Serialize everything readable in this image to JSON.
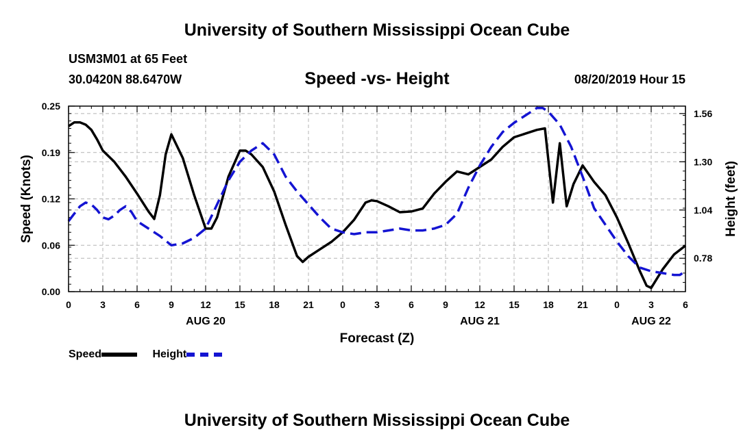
{
  "header": {
    "title": "University of Southern Mississippi Ocean Cube",
    "station": "USM3M01 at 65 Feet",
    "coords": "30.0420N 88.6470W",
    "chart_title": "Speed -vs- Height",
    "datetime": "08/20/2019 Hour 15"
  },
  "footer": {
    "title": "University of Southern Mississippi Ocean Cube"
  },
  "legend": {
    "speed_label": "Speed",
    "height_label": "Height"
  },
  "colors": {
    "speed": "#000000",
    "height": "#1414d2",
    "grid": "#b4b4b4"
  },
  "chart_data": {
    "type": "line",
    "title": "Speed -vs- Height",
    "xlabel": "Forecast (Z)",
    "ylabel": "Speed (Knots)",
    "y2label": "Height (feet)",
    "x_range": [
      0,
      54
    ],
    "ylim": [
      0.0,
      0.25
    ],
    "y2lim": [
      0.6,
      1.6
    ],
    "xticks": [
      {
        "x": 0,
        "label": "0"
      },
      {
        "x": 3,
        "label": "3"
      },
      {
        "x": 6,
        "label": "6"
      },
      {
        "x": 9,
        "label": "9"
      },
      {
        "x": 12,
        "label": "12"
      },
      {
        "x": 15,
        "label": "15"
      },
      {
        "x": 18,
        "label": "18"
      },
      {
        "x": 21,
        "label": "21"
      },
      {
        "x": 24,
        "label": "0"
      },
      {
        "x": 27,
        "label": "3"
      },
      {
        "x": 30,
        "label": "6"
      },
      {
        "x": 33,
        "label": "9"
      },
      {
        "x": 36,
        "label": "12"
      },
      {
        "x": 39,
        "label": "15"
      },
      {
        "x": 42,
        "label": "18"
      },
      {
        "x": 45,
        "label": "21"
      },
      {
        "x": 48,
        "label": "0"
      },
      {
        "x": 51,
        "label": "3"
      },
      {
        "x": 54,
        "label": "6"
      }
    ],
    "date_labels": [
      {
        "x": 12,
        "label": "AUG 20"
      },
      {
        "x": 36,
        "label": "AUG 21"
      },
      {
        "x": 51,
        "label": "AUG 22"
      }
    ],
    "yticks": [
      {
        "v": 0.0,
        "label": "0.00"
      },
      {
        "v": 0.0625,
        "label": "0.06"
      },
      {
        "v": 0.125,
        "label": "0.12"
      },
      {
        "v": 0.1875,
        "label": "0.19"
      },
      {
        "v": 0.25,
        "label": "0.25"
      }
    ],
    "y2ticks": [
      {
        "v": 0.78,
        "label": "0.78"
      },
      {
        "v": 1.04,
        "label": "1.04"
      },
      {
        "v": 1.3,
        "label": "1.30"
      },
      {
        "v": 1.56,
        "label": "1.56"
      }
    ],
    "series": [
      {
        "name": "Speed",
        "axis": "left",
        "style": "solid",
        "x": [
          0,
          0.5,
          1,
          1.5,
          2,
          2.5,
          3,
          4,
          5,
          6,
          7,
          7.5,
          8,
          8.5,
          9,
          10,
          11,
          12,
          12.5,
          13,
          14,
          15,
          15.5,
          16,
          17,
          18,
          19,
          20,
          20.5,
          21,
          22,
          23,
          24,
          25,
          26,
          26.5,
          27,
          28,
          29,
          30,
          31,
          32,
          33,
          34,
          35,
          36,
          37,
          38,
          39,
          40,
          41,
          41.7,
          42.4,
          43,
          43.6,
          44.2,
          45,
          46,
          47,
          48,
          49,
          50,
          50.6,
          51,
          52,
          53,
          54
        ],
        "values": [
          0.223,
          0.228,
          0.228,
          0.225,
          0.218,
          0.205,
          0.19,
          0.175,
          0.155,
          0.132,
          0.108,
          0.098,
          0.13,
          0.185,
          0.212,
          0.18,
          0.13,
          0.085,
          0.085,
          0.1,
          0.155,
          0.19,
          0.19,
          0.185,
          0.168,
          0.135,
          0.09,
          0.048,
          0.04,
          0.047,
          0.057,
          0.067,
          0.08,
          0.097,
          0.12,
          0.123,
          0.122,
          0.115,
          0.107,
          0.108,
          0.112,
          0.132,
          0.148,
          0.162,
          0.158,
          0.168,
          0.178,
          0.195,
          0.208,
          0.213,
          0.218,
          0.22,
          0.12,
          0.2,
          0.115,
          0.145,
          0.17,
          0.148,
          0.13,
          0.1,
          0.065,
          0.028,
          0.008,
          0.005,
          0.03,
          0.05,
          0.062
        ]
      },
      {
        "name": "Height",
        "axis": "right",
        "style": "dashed",
        "x": [
          0,
          0.5,
          1,
          1.5,
          2,
          2.5,
          3,
          3.5,
          4,
          4.5,
          5,
          5.5,
          6,
          7,
          8,
          9,
          10,
          11,
          12,
          13,
          14,
          15,
          16,
          17,
          18,
          19,
          20,
          21,
          22,
          23,
          24,
          25,
          26,
          27,
          28,
          29,
          30,
          31,
          32,
          33,
          34,
          35,
          36,
          37,
          38,
          39,
          40,
          41,
          41.5,
          42,
          43,
          44,
          45,
          46,
          47,
          48,
          49,
          50,
          51,
          52,
          53,
          53.5,
          54
        ],
        "values": [
          0.98,
          1.02,
          1.06,
          1.08,
          1.07,
          1.04,
          1.0,
          0.99,
          1.01,
          1.04,
          1.06,
          1.03,
          0.98,
          0.94,
          0.9,
          0.85,
          0.86,
          0.89,
          0.94,
          1.07,
          1.2,
          1.3,
          1.36,
          1.4,
          1.34,
          1.22,
          1.14,
          1.07,
          1.0,
          0.94,
          0.92,
          0.91,
          0.92,
          0.92,
          0.93,
          0.94,
          0.93,
          0.93,
          0.94,
          0.96,
          1.02,
          1.16,
          1.28,
          1.38,
          1.46,
          1.51,
          1.55,
          1.59,
          1.59,
          1.57,
          1.5,
          1.38,
          1.22,
          1.05,
          0.96,
          0.87,
          0.79,
          0.73,
          0.71,
          0.7,
          0.69,
          0.69,
          0.71
        ]
      }
    ]
  }
}
